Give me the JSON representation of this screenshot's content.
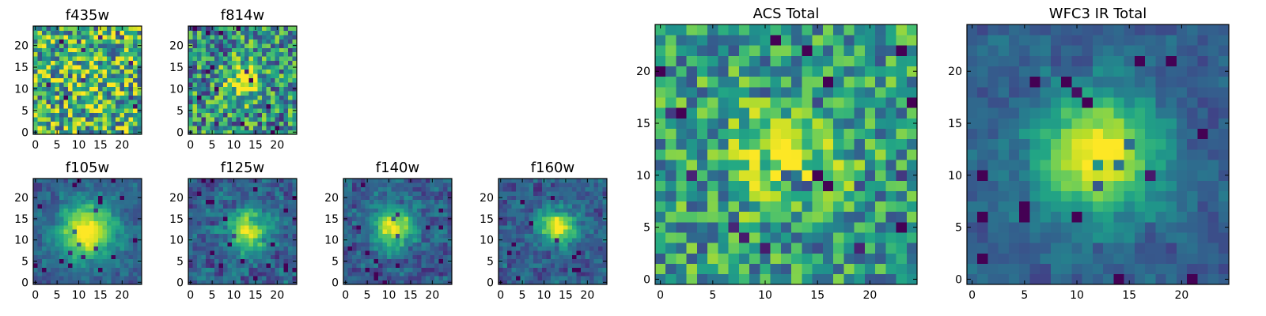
{
  "chart_data": [
    {
      "type": "heatmap",
      "title": "f435w",
      "colormap": "viridis",
      "grid_size": [
        25,
        25
      ],
      "xlim": [
        0,
        24
      ],
      "ylim": [
        0,
        24
      ],
      "xticks": [
        0,
        5,
        10,
        15,
        20
      ],
      "yticks": [
        0,
        5,
        10,
        15,
        20
      ],
      "seed": 3,
      "source_peak": 0.05,
      "source_center": [
        12,
        12
      ],
      "source_sigma": 4.0,
      "noise": 0.85,
      "base": 0.65,
      "block": 1
    },
    {
      "type": "heatmap",
      "title": "f814w",
      "colormap": "viridis",
      "grid_size": [
        25,
        25
      ],
      "xlim": [
        0,
        24
      ],
      "ylim": [
        0,
        24
      ],
      "xticks": [
        0,
        5,
        10,
        15,
        20
      ],
      "yticks": [
        0,
        5,
        10,
        15,
        20
      ],
      "seed": 7,
      "source_peak": 0.45,
      "source_center": [
        12,
        12
      ],
      "source_sigma": 3.2,
      "noise": 0.75,
      "base": 0.5,
      "block": 1
    },
    {
      "type": "heatmap",
      "title": "f105w",
      "colormap": "viridis",
      "grid_size": [
        25,
        25
      ],
      "xlim": [
        0,
        24
      ],
      "ylim": [
        0,
        24
      ],
      "xticks": [
        0,
        5,
        10,
        15,
        20
      ],
      "yticks": [
        0,
        5,
        10,
        15,
        20
      ],
      "seed": 11,
      "source_peak": 0.75,
      "source_center": [
        12,
        12
      ],
      "source_sigma": 4.5,
      "noise": 0.3,
      "base": 0.3,
      "block": 2
    },
    {
      "type": "heatmap",
      "title": "f125w",
      "colormap": "viridis",
      "grid_size": [
        25,
        25
      ],
      "xlim": [
        0,
        24
      ],
      "ylim": [
        0,
        24
      ],
      "xticks": [
        0,
        5,
        10,
        15,
        20
      ],
      "yticks": [
        0,
        5,
        10,
        15,
        20
      ],
      "seed": 13,
      "source_peak": 0.6,
      "source_center": [
        13,
        12
      ],
      "source_sigma": 3.5,
      "noise": 0.45,
      "base": 0.3,
      "block": 2
    },
    {
      "type": "heatmap",
      "title": "f140w",
      "colormap": "viridis",
      "grid_size": [
        25,
        25
      ],
      "xlim": [
        0,
        24
      ],
      "ylim": [
        0,
        24
      ],
      "xticks": [
        0,
        5,
        10,
        15,
        20
      ],
      "yticks": [
        0,
        5,
        10,
        15,
        20
      ],
      "seed": 17,
      "source_peak": 0.7,
      "source_center": [
        11,
        13
      ],
      "source_sigma": 3.2,
      "noise": 0.4,
      "base": 0.3,
      "block": 2
    },
    {
      "type": "heatmap",
      "title": "f160w",
      "colormap": "viridis",
      "grid_size": [
        25,
        25
      ],
      "xlim": [
        0,
        24
      ],
      "ylim": [
        0,
        24
      ],
      "xticks": [
        0,
        5,
        10,
        15,
        20
      ],
      "yticks": [
        0,
        5,
        10,
        15,
        20
      ],
      "seed": 19,
      "source_peak": 0.7,
      "source_center": [
        13,
        13
      ],
      "source_sigma": 2.8,
      "noise": 0.4,
      "base": 0.3,
      "block": 2
    },
    {
      "type": "heatmap",
      "title": "ACS Total",
      "colormap": "viridis",
      "grid_size": [
        25,
        25
      ],
      "xlim": [
        0,
        24
      ],
      "ylim": [
        0,
        24
      ],
      "xticks": [
        0,
        5,
        10,
        15,
        20
      ],
      "yticks": [
        0,
        5,
        10,
        15,
        20
      ],
      "seed": 23,
      "source_peak": 0.35,
      "source_center": [
        12,
        12
      ],
      "source_sigma": 3.5,
      "noise": 0.6,
      "base": 0.55,
      "block": 1
    },
    {
      "type": "heatmap",
      "title": "WFC3 IR Total",
      "colormap": "viridis",
      "grid_size": [
        25,
        25
      ],
      "xlim": [
        0,
        24
      ],
      "ylim": [
        0,
        24
      ],
      "xticks": [
        0,
        5,
        10,
        15,
        20
      ],
      "yticks": [
        0,
        5,
        10,
        15,
        20
      ],
      "seed": 29,
      "source_peak": 0.75,
      "source_center": [
        12,
        12
      ],
      "source_sigma": 4.0,
      "noise": 0.25,
      "base": 0.3,
      "block": 2
    }
  ]
}
